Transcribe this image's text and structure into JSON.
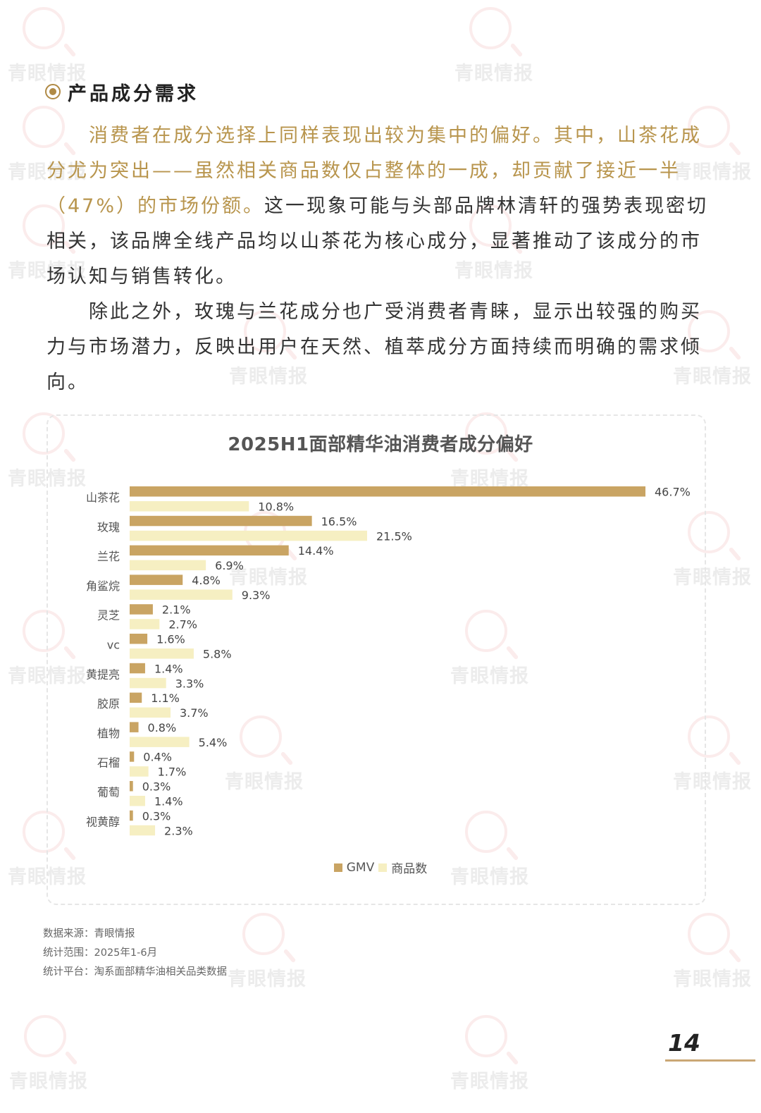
{
  "section": {
    "title": "产品成分需求"
  },
  "paragraph1": {
    "highlight": "消费者在成分选择上同样表现出较为集中的偏好。其中，山茶花成分尤为突出——虽然相关商品数仅占整体的一成，却贡献了接近一半（47%）的市场份额。",
    "normal": "这一现象可能与头部品牌林清轩的强势表现密切相关，该品牌全线产品均以山茶花为核心成分，显著推动了该成分的市场认知与销售转化。"
  },
  "paragraph2": {
    "text": "除此之外，玫瑰与兰花成分也广受消费者青睐，显示出较强的购买力与市场潜力，反映出用户在天然、植萃成分方面持续而明确的需求倾向。"
  },
  "chart_data": {
    "type": "bar",
    "orientation": "horizontal",
    "title": "2025H1面部精华油消费者成分偏好",
    "categories": [
      "山茶花",
      "玫瑰",
      "兰花",
      "角鲨烷",
      "灵芝",
      "vc",
      "黄提亮",
      "胶原",
      "植物",
      "石榴",
      "葡萄",
      "视黄醇"
    ],
    "series": [
      {
        "name": "GMV",
        "color": "#c9a463",
        "values": [
          46.7,
          16.5,
          14.4,
          4.8,
          2.1,
          1.6,
          1.4,
          1.1,
          0.8,
          0.4,
          0.3,
          0.3
        ],
        "labels": [
          "46.7%",
          "16.5%",
          "14.4%",
          "4.8%",
          "2.1%",
          "1.6%",
          "1.4%",
          "1.1%",
          "0.8%",
          "0.4%",
          "0.3%",
          "0.3%"
        ]
      },
      {
        "name": "商品数",
        "color": "#f6efc2",
        "values": [
          10.8,
          21.5,
          6.9,
          9.3,
          2.7,
          5.8,
          3.3,
          3.7,
          5.4,
          1.7,
          1.4,
          2.3
        ],
        "labels": [
          "10.8%",
          "21.5%",
          "6.9%",
          "9.3%",
          "2.7%",
          "5.8%",
          "3.3%",
          "3.7%",
          "5.4%",
          "1.7%",
          "1.4%",
          "2.3%"
        ]
      }
    ],
    "value_unit": "%",
    "xlim": [
      0,
      46.7
    ],
    "grid": false,
    "legend_position": "bottom-center"
  },
  "footnotes": {
    "source": "数据来源：青眼情报",
    "range": "统计范围：2025年1-6月",
    "platform": "统计平台：淘系面部精华油相关品类数据"
  },
  "page_number": "14",
  "watermark": {
    "text": "青眼情报"
  }
}
